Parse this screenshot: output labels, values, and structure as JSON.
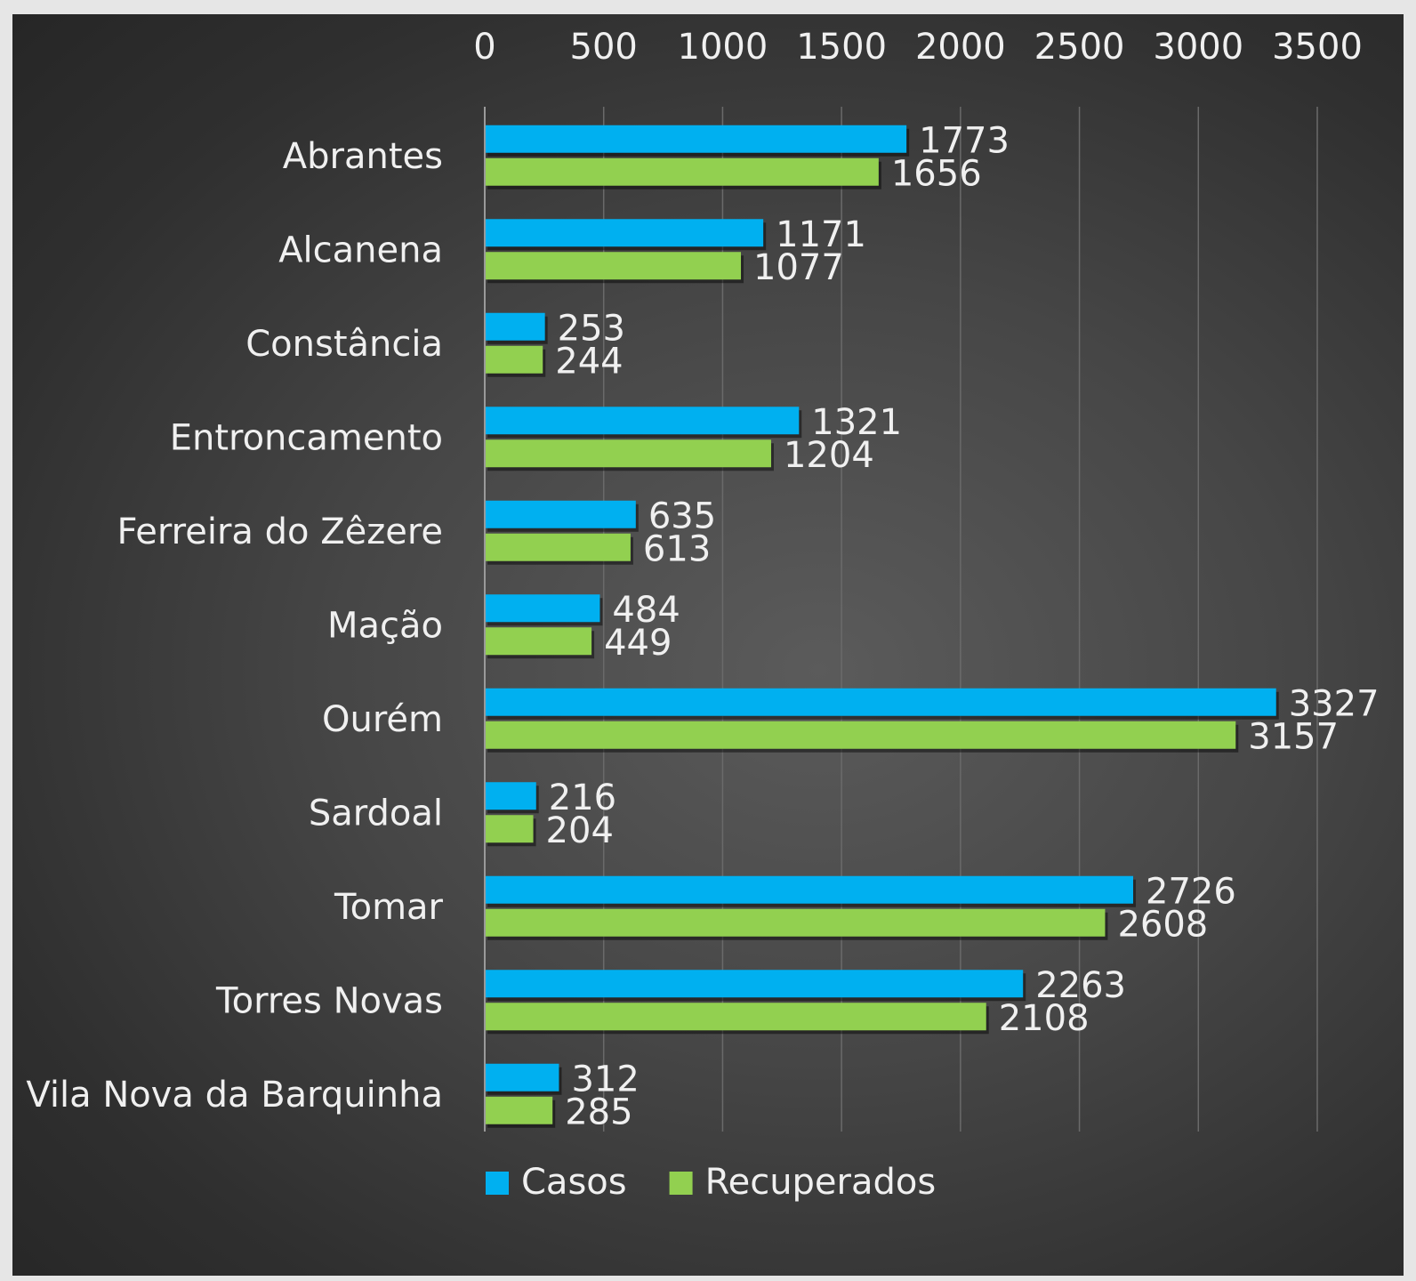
{
  "chart_data": {
    "type": "bar",
    "orientation": "horizontal",
    "title": "",
    "xlabel": "",
    "ylabel": "",
    "xlim": [
      0,
      3500
    ],
    "x_ticks": [
      "0",
      "500",
      "1000",
      "1500",
      "2000",
      "2500",
      "3000",
      "3500"
    ],
    "x_axis_position": "top",
    "grid": true,
    "legend_position": "bottom",
    "categories": [
      "Abrantes",
      "Alcanena",
      "Constância",
      "Entroncamento",
      "Ferreira do Zêzere",
      "Mação",
      "Ourém",
      "Sardoal",
      "Tomar",
      "Torres Novas",
      "Vila Nova da Barquinha"
    ],
    "series": [
      {
        "name": "Casos",
        "color": "#00b0f0",
        "values": [
          1773,
          1171,
          253,
          1321,
          635,
          484,
          3327,
          216,
          2726,
          2263,
          312
        ]
      },
      {
        "name": "Recuperados",
        "color": "#92d050",
        "values": [
          1656,
          1077,
          244,
          1204,
          613,
          449,
          3157,
          204,
          2608,
          2108,
          285
        ]
      }
    ],
    "data_labels": true
  }
}
